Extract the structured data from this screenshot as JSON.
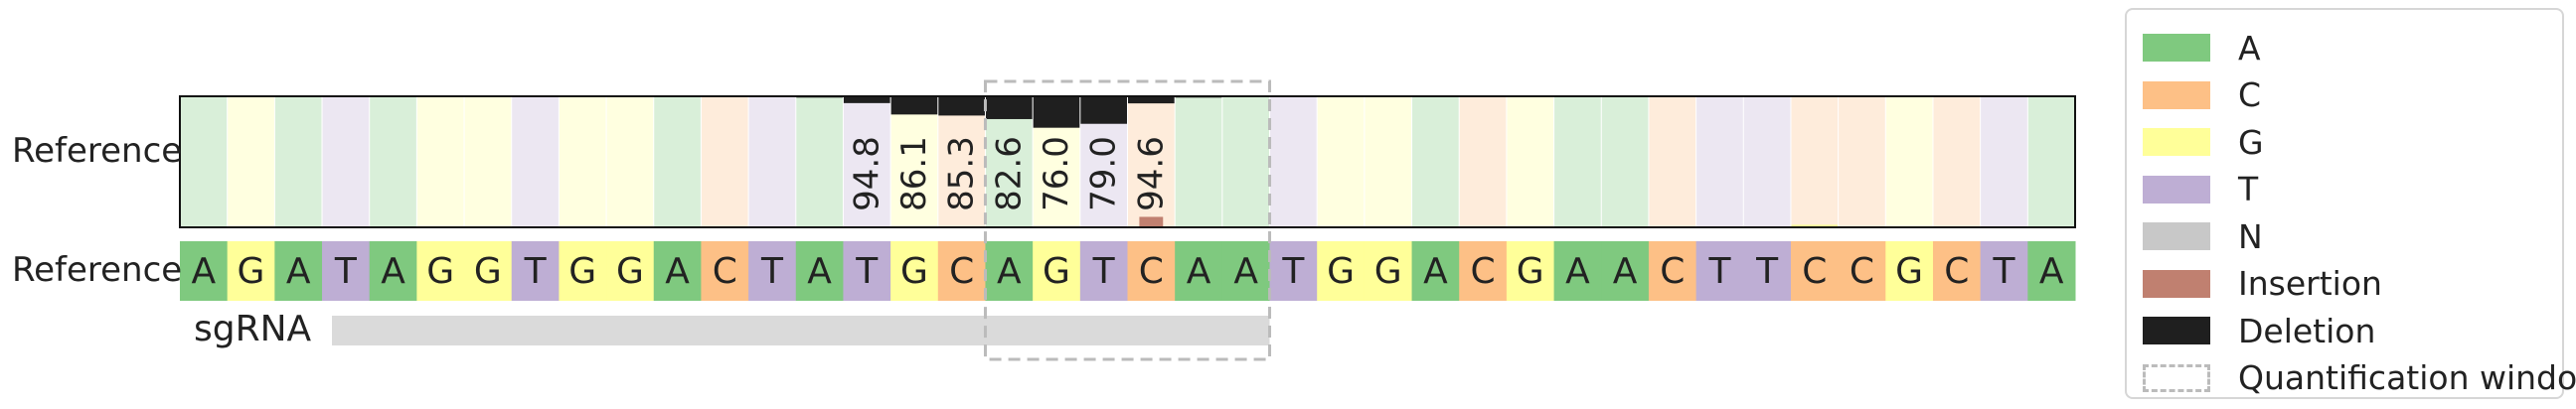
{
  "chart_data": {
    "type": "bar",
    "rows": {
      "top_label": "Reference",
      "seq_label": "Reference",
      "sgrna_label": "sgRNA"
    },
    "sequence": [
      "A",
      "G",
      "A",
      "T",
      "A",
      "G",
      "G",
      "T",
      "G",
      "G",
      "A",
      "C",
      "T",
      "A",
      "T",
      "G",
      "C",
      "A",
      "G",
      "T",
      "C",
      "A",
      "A",
      "T",
      "G",
      "G",
      "A",
      "C",
      "G",
      "A",
      "A",
      "C",
      "T",
      "T",
      "C",
      "C",
      "G",
      "C",
      "T",
      "A"
    ],
    "deletion_fraction": [
      0,
      0,
      0,
      0,
      0,
      0,
      0,
      0,
      0,
      0,
      0,
      0,
      0,
      0.01,
      0.052,
      0.139,
      0.147,
      0.174,
      0.24,
      0.21,
      0.054,
      0.01,
      0.005,
      0,
      0,
      0,
      0,
      0,
      0,
      0,
      0,
      0,
      0,
      0,
      0,
      0,
      0,
      0,
      0,
      0
    ],
    "insertion_fraction": [
      0,
      0,
      0,
      0,
      0,
      0,
      0,
      0,
      0,
      0,
      0,
      0,
      0,
      0,
      0,
      0,
      0,
      0,
      0,
      0,
      0.08,
      0,
      0,
      0,
      0,
      0,
      0,
      0,
      0,
      0,
      0,
      0,
      0,
      0,
      0,
      0,
      0,
      0,
      0,
      0
    ],
    "substitution_fraction": [
      0,
      0,
      0,
      0,
      0,
      0,
      0,
      0,
      0,
      0,
      0,
      0,
      0,
      0,
      0,
      0,
      0,
      0,
      0,
      0,
      0,
      0,
      0,
      0,
      0,
      0,
      0,
      0,
      0,
      0,
      0,
      0,
      0,
      0,
      0.02,
      0,
      0,
      0,
      0,
      0
    ],
    "bar_labels": [
      {
        "index": 14,
        "text": "94.8"
      },
      {
        "index": 15,
        "text": "86.1"
      },
      {
        "index": 16,
        "text": "85.3"
      },
      {
        "index": 17,
        "text": "82.6"
      },
      {
        "index": 18,
        "text": "76.0"
      },
      {
        "index": 19,
        "text": "79.0"
      },
      {
        "index": 20,
        "text": "94.6"
      }
    ],
    "sgrna": {
      "start_index": 3,
      "end_index": 22
    },
    "quantification_window": {
      "start_index": 17,
      "end_index": 22
    },
    "ylim": [
      0,
      1
    ],
    "legend_position": "right",
    "legend": [
      {
        "label": "A",
        "color": "#7fc97f",
        "style": "fill"
      },
      {
        "label": "C",
        "color": "#fdc086",
        "style": "fill"
      },
      {
        "label": "G",
        "color": "#ffff99",
        "style": "fill"
      },
      {
        "label": "T",
        "color": "#beaed4",
        "style": "fill"
      },
      {
        "label": "N",
        "color": "#c8c8c8",
        "style": "fill"
      },
      {
        "label": "Insertion",
        "color": "#c08070",
        "style": "fill"
      },
      {
        "label": "Deletion",
        "color": "#1f1f1f",
        "style": "fill"
      },
      {
        "label": "Quantification window",
        "color": "#bbbbbb",
        "style": "dashed"
      }
    ],
    "colors": {
      "A": "#7fc97f",
      "C": "#fdc086",
      "G": "#ffff99",
      "T": "#beaed4",
      "N": "#c8c8c8",
      "insertion": "#c08070",
      "deletion": "#1f1f1f",
      "sgrna_bar": "#dadada"
    }
  }
}
